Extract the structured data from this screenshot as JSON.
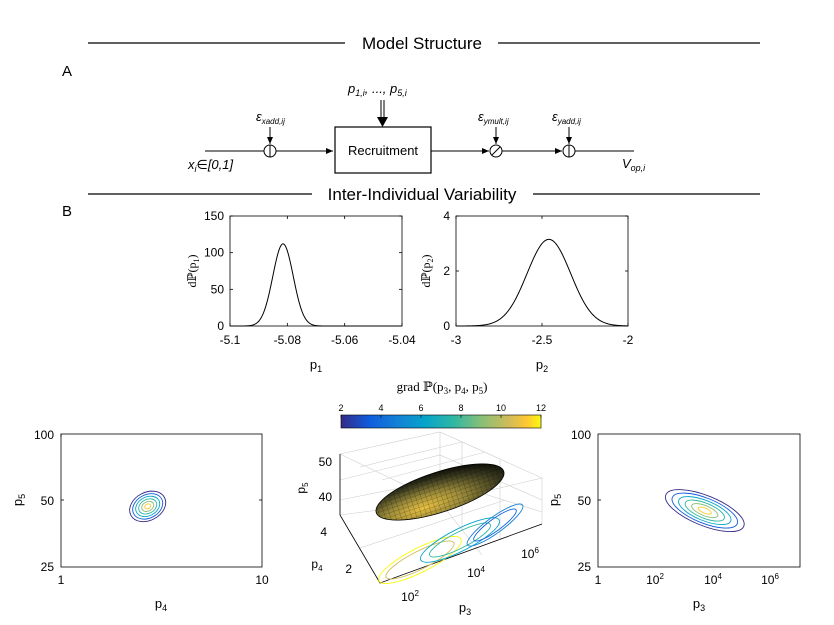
{
  "section_a": {
    "title": "Model Structure",
    "label": "A",
    "block_label": "Recruitment",
    "input_label": "x",
    "input_sub": "i",
    "input_range": "∈[0,1]",
    "params_label": "p",
    "params_sub1": "1,i",
    "params_mid": ", ..., p",
    "params_sub2": "5,i",
    "noise1": "ε",
    "noise1_sub": "xadd,ij",
    "noise2": "ε",
    "noise2_sub": "ymult,ij",
    "noise3": "ε",
    "noise3_sub": "yadd,ij",
    "output_label": "V",
    "output_sub": "op,i",
    "colors": {
      "line": "#000000"
    }
  },
  "section_b": {
    "title": "Inter-Individual Variability",
    "label": "B"
  },
  "chart_data": [
    {
      "type": "line",
      "name_ref": "density-p1",
      "xlabel": "p",
      "xlabel_sub": "1",
      "ylabel_pre": "dℙ(p",
      "ylabel_sub": "1",
      "ylabel_post": ")",
      "xlim": [
        -5.1,
        -5.04
      ],
      "ylim": [
        0,
        150
      ],
      "xticks": [
        -5.1,
        -5.08,
        -5.06,
        -5.04
      ],
      "xtick_labels": [
        "-5.1",
        "-5.08",
        "-5.06",
        "-5.04"
      ],
      "yticks": [
        0,
        50,
        100,
        150
      ],
      "ytick_labels": [
        "0",
        "50",
        "100",
        "150"
      ],
      "distribution": {
        "shape": "gaussian",
        "mean": -5.0815,
        "peak": 112
      },
      "grid": false
    },
    {
      "type": "line",
      "name_ref": "density-p2",
      "xlabel": "p",
      "xlabel_sub": "2",
      "ylabel_pre": "dℙ(p",
      "ylabel_sub": "2",
      "ylabel_post": ")",
      "xlim": [
        -3,
        -2
      ],
      "ylim": [
        0,
        4
      ],
      "xticks": [
        -3,
        -2.5,
        -2
      ],
      "xtick_labels": [
        "-3",
        "-2.5",
        "-2"
      ],
      "yticks": [
        0,
        2,
        4
      ],
      "ytick_labels": [
        "0",
        "2",
        "4"
      ],
      "distribution": {
        "shape": "gaussian",
        "mean": -2.46,
        "peak": 3.15
      },
      "grid": false
    },
    {
      "type": "contour",
      "name_ref": "contour-p4-p5",
      "xlabel": "p",
      "xlabel_sub": "4",
      "ylabel": "p",
      "ylabel_sub": "5",
      "x_scale": "log",
      "y_scale": "log",
      "xlim": [
        1,
        10
      ],
      "ylim": [
        25,
        100
      ],
      "xtick_labels": [
        "1",
        "10"
      ],
      "ytick_labels": [
        "25",
        "50",
        "100"
      ],
      "center": [
        2.7,
        47
      ],
      "levels": 6,
      "level_colors": [
        "#352a87",
        "#0f5cdd",
        "#1481d6",
        "#06a4ca",
        "#2eb7a4",
        "#87bf77",
        "#d1bb59",
        "#fec832",
        "#f9fb0e"
      ],
      "grid": false
    },
    {
      "type": "surface3d",
      "name_ref": "surface-p3-p4-p5",
      "title_pre": "grad ℙ(p",
      "title_sub1": "3",
      "title_mid1": ", p",
      "title_sub2": "4",
      "title_mid2": ", p",
      "title_sub3": "5",
      "title_post": ")",
      "colorbar": {
        "ticks": [
          "2",
          "4",
          "6",
          "8",
          "10",
          "12"
        ],
        "range": [
          2,
          12
        ]
      },
      "zlabel": "p",
      "zlabel_sub": "5",
      "zticks": [
        "40",
        "50"
      ],
      "ylabel": "p",
      "ylabel_sub": "4",
      "yticks": [
        "2",
        "4"
      ],
      "xlabel": "p",
      "xlabel_sub": "3",
      "xtick_base": "10",
      "xtick_exps": [
        "2",
        "4",
        "6"
      ],
      "grid": true
    },
    {
      "type": "contour",
      "name_ref": "contour-p3-p5",
      "xlabel": "p",
      "xlabel_sub": "3",
      "ylabel": "p",
      "ylabel_sub": "5",
      "x_scale": "log",
      "y_scale": "log",
      "xlim_exp": [
        0,
        7
      ],
      "ylim": [
        25,
        100
      ],
      "xtick_base": "10",
      "xtick_first": "1",
      "xtick_exps": [
        "2",
        "4",
        "6"
      ],
      "ytick_labels": [
        "25",
        "50",
        "100"
      ],
      "center_exp": [
        3.7,
        45
      ],
      "levels": 6,
      "grid": false
    }
  ]
}
